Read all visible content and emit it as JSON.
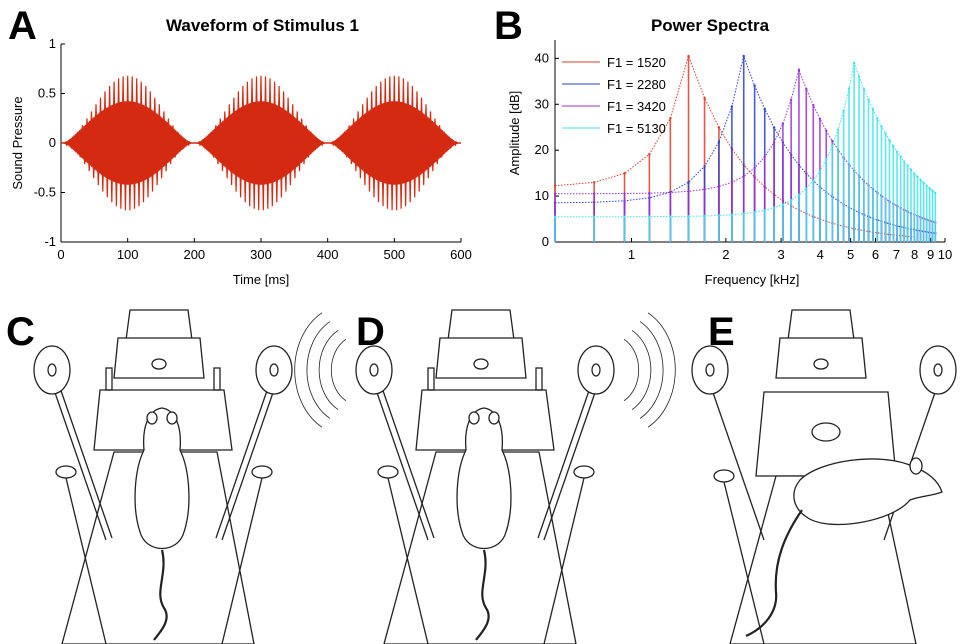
{
  "panels": {
    "a": "A",
    "b": "B",
    "c": "C",
    "d": "D",
    "e": "E"
  },
  "colors": {
    "waveform": "#d42a12",
    "f1520": "#e03c2a",
    "f2280": "#2a3fd6",
    "f3420": "#9a30d8",
    "f5130": "#40e4ec",
    "line_art": "#222222"
  },
  "chart_data": [
    {
      "type": "line",
      "title": "Waveform of Stimulus 1",
      "xlabel": "Time [ms]",
      "ylabel": "Sound Pressure",
      "xlim": [
        0,
        600
      ],
      "ylim": [
        -1,
        1
      ],
      "xticks": [
        "0",
        "100",
        "200",
        "300",
        "400",
        "500",
        "600"
      ],
      "yticks": [
        "1",
        "0.5",
        "0",
        "-0.5",
        "-1"
      ],
      "envelope": {
        "peak_amplitude": 0.68,
        "burst_centers_ms": [
          100,
          300,
          500
        ],
        "burst_half_width_ms": 95,
        "cycles_per_burst": 28
      },
      "grid": false,
      "series": [
        {
          "values": []
        }
      ]
    },
    {
      "type": "line",
      "title": "Power Spectra",
      "xlabel": "Frequency [kHz]",
      "ylabel": "Amplitude [dB]",
      "xscale": "log",
      "xlim": [
        0.57,
        10
      ],
      "ylim": [
        0,
        44
      ],
      "xticks": [
        "1",
        "2",
        "3",
        "4",
        "5",
        "6",
        "7",
        "8",
        "9",
        "10"
      ],
      "yticks": [
        "40",
        "30",
        "20",
        "10",
        "0"
      ],
      "legend_placement": "top-left",
      "harmonic_spacing_khz": 0.19,
      "series": [
        {
          "name": "F1 = 1520",
          "f1_khz": 1.52,
          "peak_db": 40.5,
          "floor_db": 12,
          "tail_db": 0.8
        },
        {
          "name": "F1 = 2280",
          "f1_khz": 2.28,
          "peak_db": 40.5,
          "floor_db": 8.5,
          "tail_db": 1.5
        },
        {
          "name": "F1 = 3420",
          "f1_khz": 3.42,
          "peak_db": 37.5,
          "floor_db": 10.5,
          "tail_db": 1.5
        },
        {
          "name": "F1 = 5130",
          "f1_khz": 5.13,
          "peak_db": 39,
          "floor_db": 5.5,
          "tail_db": 0.5
        }
      ]
    }
  ]
}
